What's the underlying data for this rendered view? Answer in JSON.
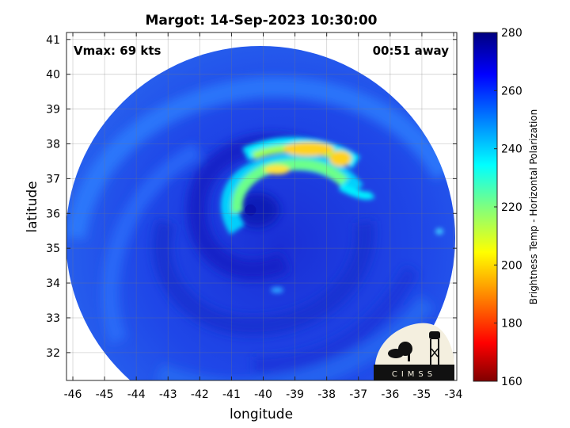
{
  "title": "Margot: 14-Sep-2023 10:30:00",
  "overlay": {
    "vmax": "Vmax: 69 kts",
    "away": "00:51 away"
  },
  "map": {
    "xlabel": "longitude",
    "ylabel": "latitude",
    "lon_range": [
      -46.2,
      -33.9
    ],
    "lat_range": [
      31.2,
      41.2
    ],
    "x_ticks": [
      -46,
      -45,
      -44,
      -43,
      -42,
      -41,
      -40,
      -39,
      -38,
      -37,
      -36,
      -35,
      -34
    ],
    "y_ticks": [
      32,
      33,
      34,
      35,
      36,
      37,
      38,
      39,
      40,
      41
    ],
    "grid": true,
    "storm_center": {
      "lon": -40.4,
      "lat": 36.1
    }
  },
  "colorbar": {
    "label": "Brightness Temp - Horizontal Polarization",
    "range": [
      160,
      280
    ],
    "ticks": [
      160,
      180,
      200,
      220,
      240,
      260,
      280
    ],
    "colormap": [
      "#7f0000",
      "#ff0000",
      "#ff8c00",
      "#ffff00",
      "#7fff7f",
      "#00ffff",
      "#0080ff",
      "#0000ff",
      "#00007f"
    ]
  },
  "logo": {
    "text": "CIMSS"
  }
}
